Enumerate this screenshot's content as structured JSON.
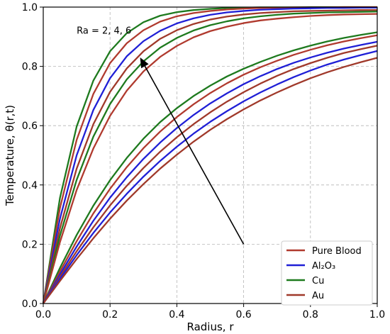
{
  "chart_data": {
    "type": "line",
    "title": "",
    "xlabel": "Radius, r",
    "ylabel": "Temperature, θ(r,t)",
    "xlim": [
      0,
      1
    ],
    "ylim": [
      0,
      1
    ],
    "xticks": [
      "0.0",
      "0.2",
      "0.4",
      "0.6",
      "0.8",
      "1.0"
    ],
    "yticks": [
      "0.0",
      "0.2",
      "0.4",
      "0.6",
      "0.8",
      "1.0"
    ],
    "grid": true,
    "legend_position": "bottom-right",
    "legend": [
      {
        "label": "Pure Blood",
        "color": "#b03a2e"
      },
      {
        "label": "Al₂O₃",
        "color": "#1f1fd6"
      },
      {
        "label": "Cu",
        "color": "#1e7a1e"
      },
      {
        "label": "Au",
        "color": "#a0392a"
      }
    ],
    "annotation": {
      "text": "Ra = 2, 4, 6",
      "arrow_from": [
        0.6,
        0.2
      ],
      "arrow_to": [
        0.29,
        0.83
      ]
    },
    "x": [
      0,
      0.05,
      0.1,
      0.15,
      0.2,
      0.25,
      0.3,
      0.35,
      0.4,
      0.45,
      0.5,
      0.55,
      0.6,
      0.65,
      0.7,
      0.75,
      0.8,
      0.85,
      0.9,
      0.95,
      1.0
    ],
    "series": [
      {
        "group": "upper",
        "color": "#1e7a1e",
        "values": [
          0.0,
          0.356,
          0.597,
          0.752,
          0.851,
          0.912,
          0.949,
          0.971,
          0.983,
          0.99,
          0.994,
          0.997,
          0.998,
          0.999,
          0.999,
          0.999,
          1.0,
          1.0,
          1.0,
          1.0,
          1.0
        ]
      },
      {
        "group": "upper",
        "color": "#b03a2e",
        "values": [
          0.0,
          0.322,
          0.552,
          0.707,
          0.811,
          0.878,
          0.922,
          0.951,
          0.969,
          0.98,
          0.987,
          0.992,
          0.995,
          0.997,
          0.998,
          0.999,
          0.999,
          0.999,
          1.0,
          1.0,
          1.0
        ]
      },
      {
        "group": "upper",
        "color": "#1f1fd6",
        "values": [
          0.0,
          0.286,
          0.5,
          0.653,
          0.76,
          0.834,
          0.885,
          0.92,
          0.945,
          0.962,
          0.974,
          0.982,
          0.987,
          0.991,
          0.993,
          0.995,
          0.996,
          0.997,
          0.997,
          0.998,
          0.998
        ]
      },
      {
        "group": "upper",
        "color": "#a0392a",
        "values": [
          0.0,
          0.254,
          0.455,
          0.605,
          0.714,
          0.793,
          0.851,
          0.893,
          0.922,
          0.943,
          0.958,
          0.968,
          0.975,
          0.98,
          0.983,
          0.986,
          0.987,
          0.988,
          0.989,
          0.99,
          0.99
        ]
      },
      {
        "group": "upper",
        "color": "#1e7a1e",
        "values": [
          0.0,
          0.229,
          0.417,
          0.563,
          0.673,
          0.756,
          0.817,
          0.863,
          0.896,
          0.921,
          0.939,
          0.952,
          0.962,
          0.969,
          0.974,
          0.978,
          0.98,
          0.982,
          0.983,
          0.984,
          0.985
        ]
      },
      {
        "group": "upper",
        "color": "#b03a2e",
        "values": [
          0.0,
          0.207,
          0.383,
          0.523,
          0.633,
          0.718,
          0.783,
          0.832,
          0.869,
          0.898,
          0.919,
          0.934,
          0.946,
          0.955,
          0.961,
          0.966,
          0.97,
          0.973,
          0.975,
          0.976,
          0.977
        ]
      },
      {
        "group": "lower",
        "color": "#1e7a1e",
        "values": [
          0.0,
          0.12,
          0.231,
          0.33,
          0.416,
          0.491,
          0.556,
          0.612,
          0.659,
          0.7,
          0.735,
          0.766,
          0.792,
          0.815,
          0.836,
          0.854,
          0.87,
          0.884,
          0.896,
          0.906,
          0.915
        ]
      },
      {
        "group": "lower",
        "color": "#b03a2e",
        "values": [
          0.0,
          0.108,
          0.21,
          0.304,
          0.387,
          0.46,
          0.524,
          0.58,
          0.629,
          0.672,
          0.71,
          0.743,
          0.772,
          0.797,
          0.819,
          0.839,
          0.856,
          0.871,
          0.884,
          0.895,
          0.905
        ]
      },
      {
        "group": "lower",
        "color": "#1f1fd6",
        "values": [
          0.0,
          0.098,
          0.192,
          0.279,
          0.357,
          0.426,
          0.488,
          0.543,
          0.592,
          0.636,
          0.675,
          0.709,
          0.74,
          0.767,
          0.791,
          0.812,
          0.83,
          0.846,
          0.86,
          0.872,
          0.883
        ]
      },
      {
        "group": "lower",
        "color": "#a0392a",
        "values": [
          0.0,
          0.09,
          0.176,
          0.257,
          0.331,
          0.397,
          0.457,
          0.512,
          0.561,
          0.605,
          0.645,
          0.681,
          0.713,
          0.742,
          0.768,
          0.791,
          0.811,
          0.829,
          0.845,
          0.858,
          0.87
        ]
      },
      {
        "group": "lower",
        "color": "#1f1fd6",
        "values": [
          0.0,
          0.083,
          0.163,
          0.238,
          0.307,
          0.37,
          0.428,
          0.481,
          0.529,
          0.573,
          0.613,
          0.649,
          0.682,
          0.712,
          0.739,
          0.764,
          0.786,
          0.806,
          0.823,
          0.838,
          0.852
        ]
      },
      {
        "group": "lower",
        "color": "#a0392a",
        "values": [
          0.0,
          0.076,
          0.15,
          0.22,
          0.286,
          0.347,
          0.403,
          0.455,
          0.502,
          0.546,
          0.586,
          0.622,
          0.655,
          0.685,
          0.712,
          0.737,
          0.76,
          0.78,
          0.798,
          0.814,
          0.829
        ]
      }
    ]
  }
}
